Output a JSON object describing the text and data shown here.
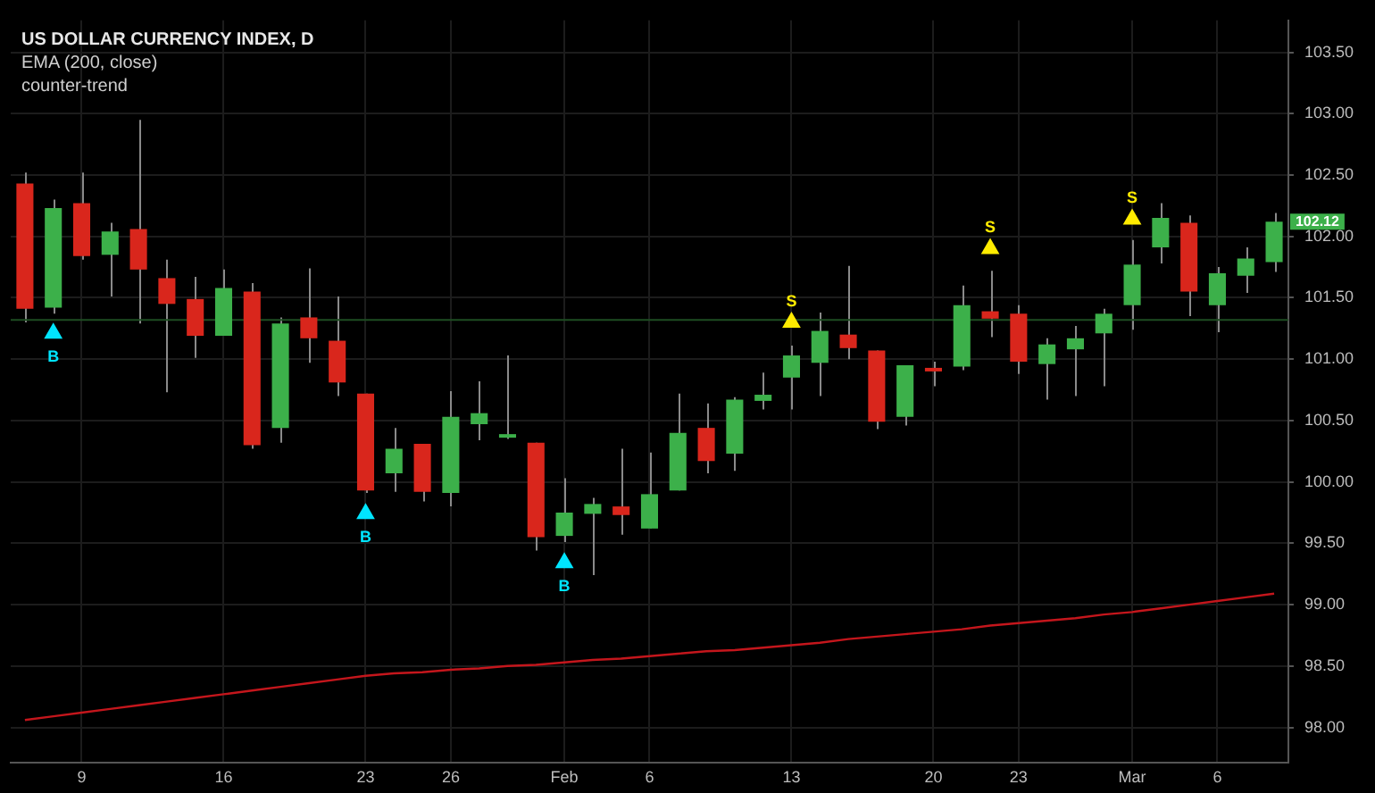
{
  "chart_data": {
    "type": "candlestick",
    "title": "US DOLLAR CURRENCY INDEX, D",
    "subtitle": "EMA (200, close)",
    "annotations": [
      "counter-trend"
    ],
    "value_labels": [
      null,
      null,
      null,
      null,
      null,
      null,
      null,
      null,
      null,
      null,
      null,
      null,
      null,
      null,
      null,
      null,
      null,
      null,
      null,
      null,
      null,
      null,
      null,
      null,
      null,
      null,
      null,
      null,
      null,
      null,
      null,
      null,
      null,
      null,
      null,
      null,
      null,
      null,
      null,
      null,
      null,
      null,
      null,
      null,
      "102.12"
    ],
    "categories": [
      null,
      null,
      "9",
      null,
      null,
      null,
      null,
      "16",
      null,
      null,
      null,
      null,
      "23",
      null,
      null,
      "26",
      null,
      null,
      null,
      "Feb",
      null,
      null,
      "6",
      null,
      null,
      null,
      null,
      "13",
      null,
      null,
      null,
      null,
      "20",
      null,
      null,
      "23",
      null,
      null,
      null,
      "Mar",
      null,
      null,
      "6",
      null,
      null
    ],
    "ohlc": [
      [
        102.43,
        102.52,
        101.3,
        101.41
      ],
      [
        101.42,
        102.3,
        101.37,
        102.23
      ],
      [
        102.27,
        102.52,
        101.81,
        101.84
      ],
      [
        101.85,
        102.11,
        101.51,
        102.04
      ],
      [
        102.06,
        102.95,
        101.29,
        101.73
      ],
      [
        101.66,
        101.81,
        100.73,
        101.45
      ],
      [
        101.49,
        101.67,
        101.01,
        101.19
      ],
      [
        101.19,
        101.73,
        101.19,
        101.58
      ],
      [
        101.55,
        101.62,
        100.27,
        100.3
      ],
      [
        100.44,
        101.34,
        100.32,
        101.29
      ],
      [
        101.34,
        101.74,
        100.97,
        101.17
      ],
      [
        101.15,
        101.51,
        100.7,
        100.81
      ],
      [
        100.72,
        100.72,
        99.91,
        99.93
      ],
      [
        100.07,
        100.44,
        99.92,
        100.27
      ],
      [
        100.31,
        100.31,
        99.84,
        99.92
      ],
      [
        99.91,
        100.74,
        99.8,
        100.53
      ],
      [
        100.47,
        100.82,
        100.34,
        100.56
      ],
      [
        100.36,
        101.03,
        100.35,
        100.37
      ],
      [
        100.32,
        100.32,
        99.44,
        99.55
      ],
      [
        99.56,
        100.03,
        99.51,
        99.75
      ],
      [
        99.74,
        99.87,
        99.24,
        99.82
      ],
      [
        99.8,
        100.27,
        99.57,
        99.73
      ],
      [
        99.62,
        100.24,
        99.62,
        99.9
      ],
      [
        99.93,
        100.72,
        99.93,
        100.4
      ],
      [
        100.44,
        100.64,
        100.07,
        100.17
      ],
      [
        100.23,
        100.69,
        100.09,
        100.67
      ],
      [
        100.66,
        100.89,
        100.59,
        100.71
      ],
      [
        100.85,
        101.11,
        100.59,
        101.03
      ],
      [
        100.97,
        101.38,
        100.7,
        101.23
      ],
      [
        101.2,
        101.76,
        101.0,
        101.09
      ],
      [
        101.07,
        101.07,
        100.43,
        100.49
      ],
      [
        100.53,
        100.95,
        100.46,
        100.95
      ],
      [
        100.91,
        100.98,
        100.78,
        100.9
      ],
      [
        100.94,
        101.6,
        100.91,
        101.44
      ],
      [
        101.39,
        101.72,
        101.18,
        101.33
      ],
      [
        101.37,
        101.44,
        100.88,
        100.98
      ],
      [
        100.96,
        101.17,
        100.67,
        101.12
      ],
      [
        101.08,
        101.27,
        100.7,
        101.17
      ],
      [
        101.21,
        101.41,
        100.78,
        101.37
      ],
      [
        101.44,
        101.97,
        101.24,
        101.77
      ],
      [
        101.91,
        102.27,
        101.78,
        102.15
      ],
      [
        102.11,
        102.17,
        101.35,
        101.55
      ],
      [
        101.44,
        101.75,
        101.22,
        101.7
      ],
      [
        101.68,
        101.91,
        101.54,
        101.82
      ],
      [
        101.79,
        102.19,
        101.71,
        102.12
      ]
    ],
    "colors": [
      "#d9261c",
      "#3cb04a",
      "#d9261c",
      "#3cb04a",
      "#d9261c",
      "#d9261c",
      "#d9261c",
      "#3cb04a",
      "#d9261c",
      "#3cb04a",
      "#d9261c",
      "#d9261c",
      "#d9261c",
      "#3cb04a",
      "#d9261c",
      "#3cb04a",
      "#3cb04a",
      "#3cb04a",
      "#d9261c",
      "#3cb04a",
      "#3cb04a",
      "#d9261c",
      "#3cb04a",
      "#3cb04a",
      "#d9261c",
      "#3cb04a",
      "#3cb04a",
      "#3cb04a",
      "#3cb04a",
      "#d9261c",
      "#d9261c",
      "#3cb04a",
      "#d9261c",
      "#3cb04a",
      "#d9261c",
      "#d9261c",
      "#3cb04a",
      "#3cb04a",
      "#3cb04a",
      "#3cb04a",
      "#3cb04a",
      "#d9261c",
      "#3cb04a",
      "#3cb04a",
      "#3cb04a"
    ],
    "series": [
      {
        "type": "line",
        "color": "#c4161c",
        "marker": "none",
        "values": [
          98.06,
          98.09,
          98.12,
          98.15,
          98.18,
          98.21,
          98.24,
          98.27,
          98.3,
          98.33,
          98.36,
          98.39,
          98.42,
          98.44,
          98.45,
          98.47,
          98.48,
          98.5,
          98.51,
          98.53,
          98.55,
          98.56,
          98.58,
          98.6,
          98.62,
          98.63,
          98.65,
          98.67,
          98.69,
          98.72,
          98.74,
          98.76,
          98.78,
          98.8,
          98.83,
          98.85,
          98.87,
          98.89,
          98.92,
          98.94,
          98.97,
          99.0,
          99.03,
          99.06,
          99.09
        ]
      },
      {
        "type": "scatter",
        "name": "B",
        "color": "#00e5ff",
        "marker": "triangle",
        "values": [
          null,
          101.21,
          null,
          null,
          null,
          null,
          null,
          null,
          null,
          null,
          null,
          null,
          99.74,
          null,
          null,
          null,
          null,
          null,
          null,
          99.34,
          null,
          null,
          null,
          null,
          null,
          null,
          null,
          null,
          null,
          null,
          null,
          null,
          null,
          null,
          null,
          null,
          null,
          null,
          null,
          null,
          null,
          null,
          null,
          null,
          null
        ]
      },
      {
        "type": "scatter",
        "name": "S",
        "color": "#ffeb00",
        "marker": "triangle",
        "values": [
          null,
          null,
          null,
          null,
          null,
          null,
          null,
          null,
          null,
          null,
          null,
          null,
          null,
          null,
          null,
          null,
          null,
          null,
          null,
          null,
          null,
          null,
          null,
          null,
          null,
          null,
          null,
          101.3,
          null,
          null,
          null,
          null,
          null,
          null,
          101.9,
          null,
          null,
          null,
          null,
          102.14,
          null,
          null,
          null,
          null,
          null
        ]
      }
    ],
    "ref_lines": [
      {
        "axis": "y",
        "value": 101.32,
        "color": "#1e4d22"
      }
    ],
    "ylim": [
      97.71,
      103.76
    ],
    "yticks": [
      {
        "value": 98,
        "label": "98.00"
      },
      {
        "value": 98.5,
        "label": "98.50"
      },
      {
        "value": 99,
        "label": "99.00"
      },
      {
        "value": 99.5,
        "label": "99.50"
      },
      {
        "value": 100,
        "label": "100.00"
      },
      {
        "value": 100.5,
        "label": "100.50"
      },
      {
        "value": 101,
        "label": "101.00"
      },
      {
        "value": 101.5,
        "label": "101.50"
      },
      {
        "value": 102,
        "label": "102.00"
      },
      {
        "value": 102.5,
        "label": "102.50"
      },
      {
        "value": 103,
        "label": "103.00"
      },
      {
        "value": 103.5,
        "label": "103.50"
      }
    ],
    "grid": true,
    "legend": false
  }
}
